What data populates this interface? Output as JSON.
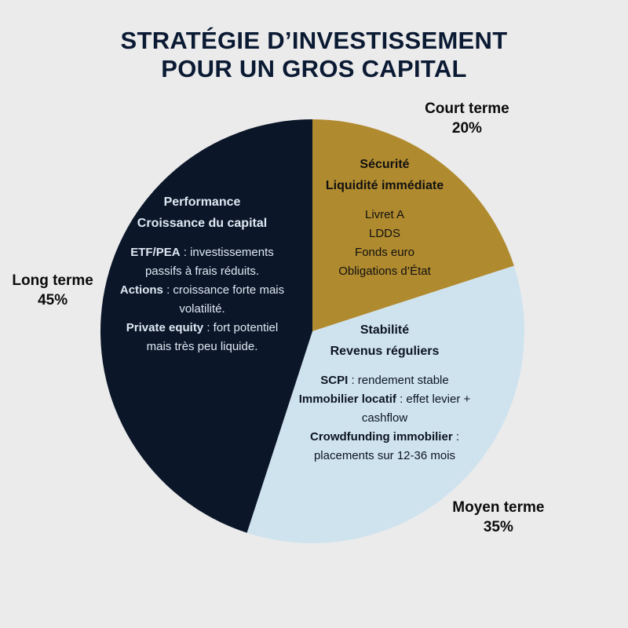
{
  "chart_data": {
    "type": "pie",
    "title": "STRATÉGIE D’INVESTISSEMENT POUR UN GROS CAPITAL",
    "categories": [
      "Court terme",
      "Moyen terme",
      "Long terme"
    ],
    "values": [
      20,
      35,
      45
    ],
    "value_labels": [
      "20%",
      "35%",
      "45%"
    ],
    "colors": [
      "#b08a2e",
      "#cfe3ef",
      "#0b1629"
    ],
    "slice_text": [
      {
        "heading": [
          "Sécurité",
          "Liquidité immédiate"
        ],
        "items": [
          "Livret A",
          "LDDS",
          "Fonds euro",
          "Obligations d’État"
        ]
      },
      {
        "heading": [
          "Stabilité",
          "Revenus réguliers"
        ],
        "items": [
          {
            "term": "SCPI",
            "text": ": rendement stable"
          },
          {
            "term": "Immobilier locatif",
            "text": ": effet levier + cashflow"
          },
          {
            "term": "Crowdfunding immobilier",
            "text": ": placements sur 12-36 mois"
          }
        ]
      },
      {
        "heading": [
          "Performance",
          "Croissance du capital"
        ],
        "items": [
          {
            "term": "ETF/PEA",
            "text": ": investissements passifs à frais réduits."
          },
          {
            "term": "Actions",
            "text": ": croissance forte mais volatilité."
          },
          {
            "term": "Private equity",
            "text": ": fort potentiel mais très peu liquide."
          }
        ]
      }
    ]
  }
}
